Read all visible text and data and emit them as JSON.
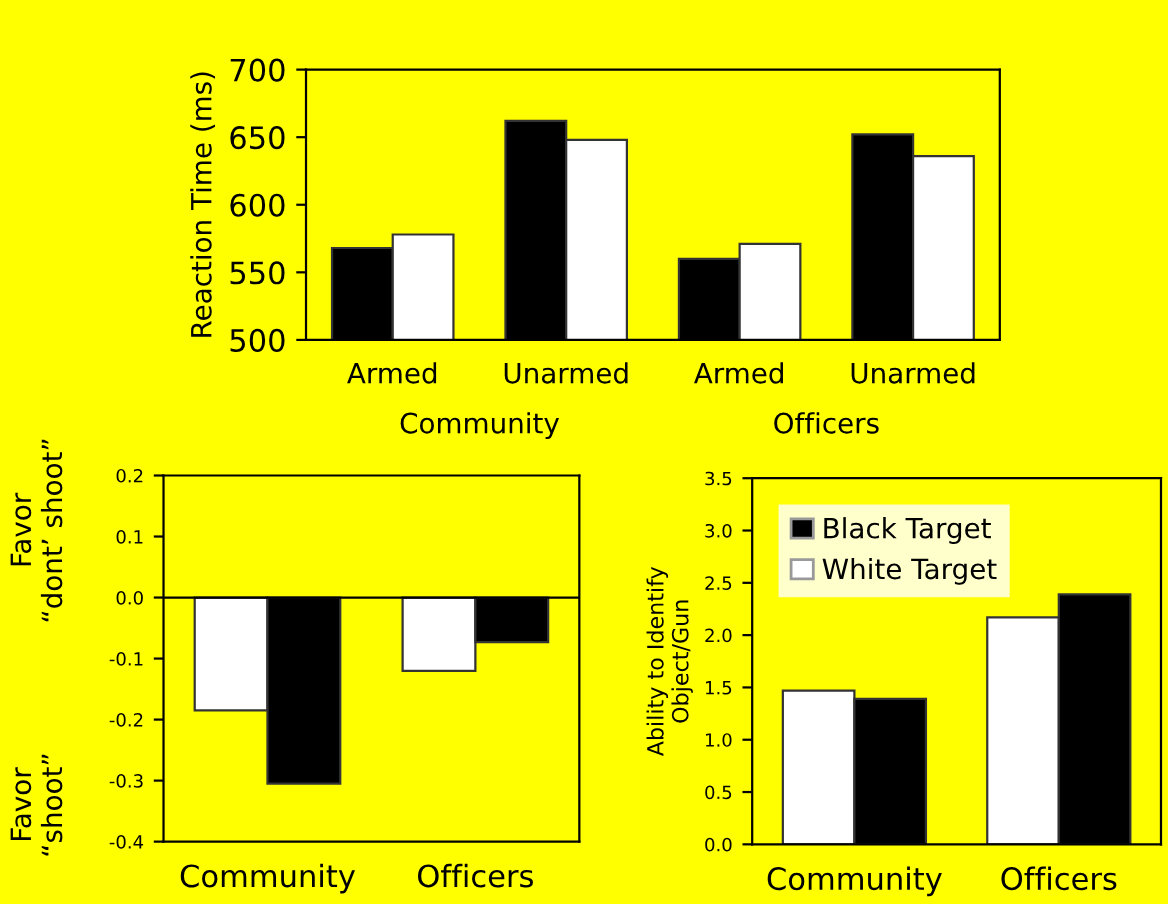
{
  "chart_data": [
    {
      "type": "bar",
      "ylabel": "Reaction Time (ms)",
      "categories": [
        "Armed",
        "Unarmed",
        "Armed",
        "Unarmed"
      ],
      "series": [
        {
          "color": "#000000",
          "values": [
            568,
            662,
            560,
            652
          ]
        },
        {
          "color": "#ffffff",
          "values": [
            578,
            648,
            571,
            636
          ]
        }
      ],
      "ylim": [
        500,
        700
      ],
      "yticks": [
        500,
        550,
        600,
        650,
        700
      ],
      "annotations": [
        "Community",
        "Officers"
      ],
      "grid": false,
      "legend": false
    },
    {
      "type": "bar",
      "categories": [
        "Community",
        "Officers"
      ],
      "series": [
        {
          "color": "#ffffff",
          "values": [
            -0.185,
            -0.12
          ]
        },
        {
          "color": "#000000",
          "values": [
            -0.305,
            -0.073
          ]
        }
      ],
      "ylim": [
        -0.4,
        0.2
      ],
      "yticks": [
        {
          "value": 0.2,
          "label": "0.2"
        },
        {
          "value": 0.1,
          "label": "0.1"
        },
        {
          "value": 0,
          "label": "0.0"
        },
        {
          "value": -0.1,
          "label": "-0.1"
        },
        {
          "value": -0.2,
          "label": "-0.2"
        },
        {
          "value": -0.3,
          "label": "-0.3"
        },
        {
          "value": -0.4,
          "label": "-0.4"
        }
      ],
      "annotations": [
        "Favor\n“dont’ shoot”",
        "Favor\n“shoot”"
      ],
      "ref_lines": [
        {
          "axis": "y",
          "value": 0,
          "color": "#000000"
        }
      ],
      "grid": false,
      "legend": false
    },
    {
      "type": "bar",
      "ylabel": "Ability to Identify\nObject/Gun",
      "categories": [
        "Community",
        "Officers"
      ],
      "series": [
        {
          "name": "White Target",
          "color": "#ffffff",
          "values": [
            1.47,
            2.17
          ]
        },
        {
          "name": "Black Target",
          "color": "#000000",
          "values": [
            1.39,
            2.39
          ]
        }
      ],
      "ylim": [
        0,
        3.5
      ],
      "yticks": [
        {
          "value": 0,
          "label": "0.0"
        },
        {
          "value": 0.5,
          "label": "0.5"
        },
        {
          "value": 1,
          "label": "1.0"
        },
        {
          "value": 1.5,
          "label": "1.5"
        },
        {
          "value": 2,
          "label": "2.0"
        },
        {
          "value": 2.5,
          "label": "2.5"
        },
        {
          "value": 3,
          "label": "3.0"
        },
        {
          "value": 3.5,
          "label": "3.5"
        }
      ],
      "grid": false,
      "legend": "top left"
    }
  ]
}
